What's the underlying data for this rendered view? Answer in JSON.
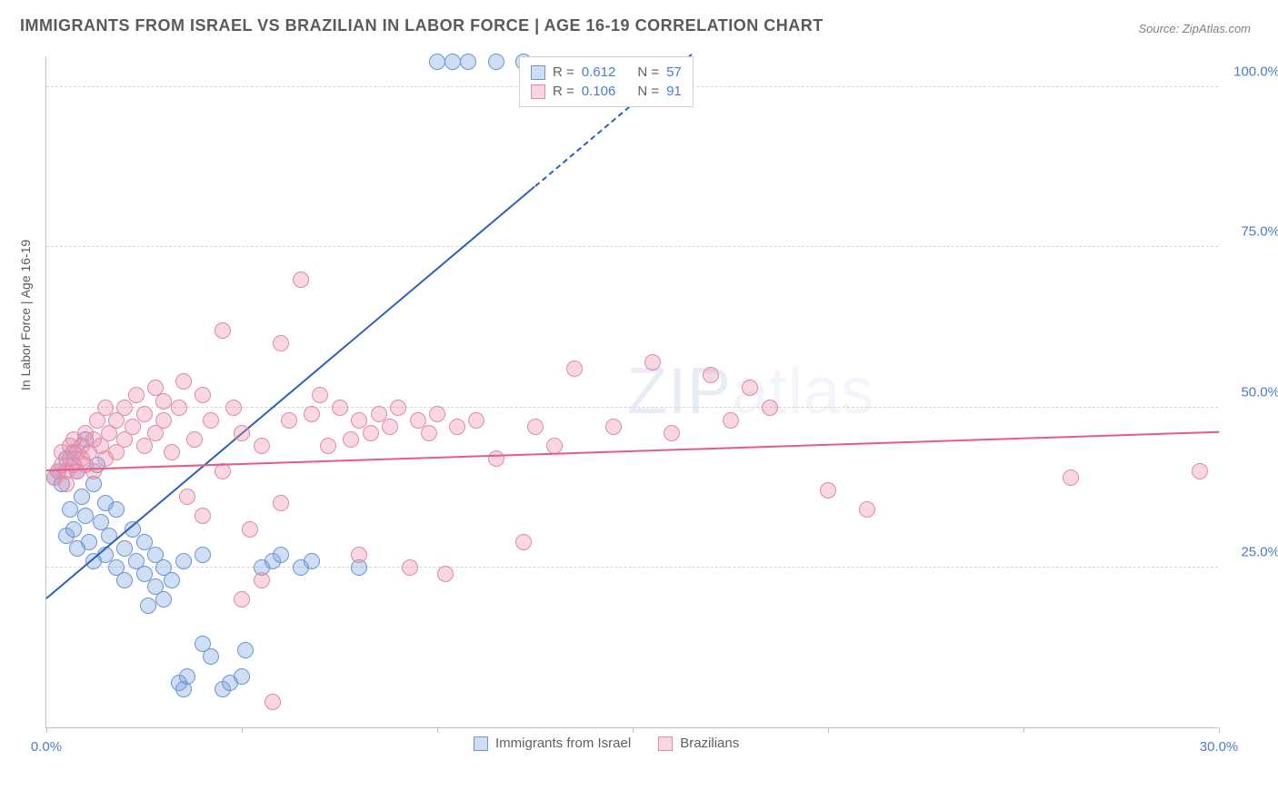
{
  "title": "IMMIGRANTS FROM ISRAEL VS BRAZILIAN IN LABOR FORCE | AGE 16-19 CORRELATION CHART",
  "source": "Source: ZipAtlas.com",
  "y_axis_label": "In Labor Force | Age 16-19",
  "watermark": "ZIPatlas",
  "chart": {
    "type": "scatter-correlation",
    "xlim": [
      0,
      30
    ],
    "ylim": [
      0,
      105
    ],
    "x_ticks": [
      0,
      5,
      10,
      15,
      20,
      25,
      30
    ],
    "x_tick_labels": {
      "0": "0.0%",
      "30": "30.0%"
    },
    "y_ticks": [
      25,
      50,
      75,
      100
    ],
    "y_tick_labels": {
      "25": "25.0%",
      "50": "50.0%",
      "75": "75.0%",
      "100": "100.0%"
    },
    "background_color": "#ffffff",
    "grid_color": "#d5d5d5",
    "axis_color": "#c0c0c0",
    "tick_label_color": "#4a7bd0",
    "tick_label_fontsize": 15,
    "title_color": "#5a5a5a",
    "title_fontsize": 18,
    "marker_radius": 9,
    "marker_stroke_width": 1.5,
    "series": [
      {
        "name": "Immigrants from Israel",
        "fill_color": "rgba(120,160,220,0.35)",
        "stroke_color": "#6a95d6",
        "trend_color": "#2a5fc0",
        "trend_width": 2,
        "R": 0.612,
        "N": 57,
        "trend": {
          "x1": 0,
          "y1": 20,
          "x2": 16.5,
          "y2": 105,
          "dash_from_x": 12.5
        },
        "points": [
          [
            0.2,
            39
          ],
          [
            0.3,
            40
          ],
          [
            0.4,
            38
          ],
          [
            0.5,
            42
          ],
          [
            0.5,
            30
          ],
          [
            0.6,
            34
          ],
          [
            0.7,
            43
          ],
          [
            0.7,
            31
          ],
          [
            0.8,
            40
          ],
          [
            0.8,
            28
          ],
          [
            0.9,
            36
          ],
          [
            1.0,
            45
          ],
          [
            1.0,
            33
          ],
          [
            1.1,
            29
          ],
          [
            1.2,
            38
          ],
          [
            1.2,
            26
          ],
          [
            1.3,
            41
          ],
          [
            1.4,
            32
          ],
          [
            1.5,
            35
          ],
          [
            1.5,
            27
          ],
          [
            1.6,
            30
          ],
          [
            1.8,
            34
          ],
          [
            1.8,
            25
          ],
          [
            2.0,
            28
          ],
          [
            2.0,
            23
          ],
          [
            2.2,
            31
          ],
          [
            2.3,
            26
          ],
          [
            2.5,
            29
          ],
          [
            2.5,
            24
          ],
          [
            2.6,
            19
          ],
          [
            2.8,
            22
          ],
          [
            2.8,
            27
          ],
          [
            3.0,
            25
          ],
          [
            3.0,
            20
          ],
          [
            3.2,
            23
          ],
          [
            3.4,
            7
          ],
          [
            3.5,
            26
          ],
          [
            3.5,
            6
          ],
          [
            3.6,
            8
          ],
          [
            4.0,
            13
          ],
          [
            4.2,
            11
          ],
          [
            4.5,
            6
          ],
          [
            4.7,
            7
          ],
          [
            5.0,
            8
          ],
          [
            5.1,
            12
          ],
          [
            5.5,
            25
          ],
          [
            5.8,
            26
          ],
          [
            6.0,
            27
          ],
          [
            6.5,
            25
          ],
          [
            6.8,
            26
          ],
          [
            8.0,
            25
          ],
          [
            10.0,
            104
          ],
          [
            10.4,
            104
          ],
          [
            10.8,
            104
          ],
          [
            11.5,
            104
          ],
          [
            12.2,
            104
          ],
          [
            4.0,
            27
          ]
        ]
      },
      {
        "name": "Brazilians",
        "fill_color": "rgba(235,140,170,0.35)",
        "stroke_color": "#e08aaa",
        "trend_color": "#e65a8a",
        "trend_width": 2,
        "R": 0.106,
        "N": 91,
        "trend": {
          "x1": 0,
          "y1": 40,
          "x2": 30,
          "y2": 46
        },
        "points": [
          [
            0.2,
            39
          ],
          [
            0.3,
            40
          ],
          [
            0.4,
            41
          ],
          [
            0.4,
            43
          ],
          [
            0.5,
            40
          ],
          [
            0.5,
            38
          ],
          [
            0.6,
            42
          ],
          [
            0.6,
            44
          ],
          [
            0.7,
            41
          ],
          [
            0.7,
            45
          ],
          [
            0.8,
            43
          ],
          [
            0.8,
            40
          ],
          [
            0.9,
            44
          ],
          [
            0.9,
            42
          ],
          [
            1.0,
            41
          ],
          [
            1.0,
            46
          ],
          [
            1.1,
            43
          ],
          [
            1.2,
            45
          ],
          [
            1.2,
            40
          ],
          [
            1.3,
            48
          ],
          [
            1.4,
            44
          ],
          [
            1.5,
            42
          ],
          [
            1.5,
            50
          ],
          [
            1.6,
            46
          ],
          [
            1.8,
            43
          ],
          [
            1.8,
            48
          ],
          [
            2.0,
            45
          ],
          [
            2.0,
            50
          ],
          [
            2.2,
            47
          ],
          [
            2.3,
            52
          ],
          [
            2.5,
            44
          ],
          [
            2.5,
            49
          ],
          [
            2.8,
            46
          ],
          [
            2.8,
            53
          ],
          [
            3.0,
            48
          ],
          [
            3.0,
            51
          ],
          [
            3.2,
            43
          ],
          [
            3.4,
            50
          ],
          [
            3.5,
            54
          ],
          [
            3.6,
            36
          ],
          [
            3.8,
            45
          ],
          [
            4.0,
            52
          ],
          [
            4.0,
            33
          ],
          [
            4.2,
            48
          ],
          [
            4.5,
            40
          ],
          [
            4.5,
            62
          ],
          [
            4.8,
            50
          ],
          [
            5.0,
            46
          ],
          [
            5.0,
            20
          ],
          [
            5.2,
            31
          ],
          [
            5.5,
            44
          ],
          [
            5.5,
            23
          ],
          [
            5.8,
            4
          ],
          [
            6.0,
            60
          ],
          [
            6.0,
            35
          ],
          [
            6.2,
            48
          ],
          [
            6.5,
            70
          ],
          [
            6.8,
            49
          ],
          [
            7.0,
            52
          ],
          [
            7.2,
            44
          ],
          [
            7.5,
            50
          ],
          [
            7.8,
            45
          ],
          [
            8.0,
            48
          ],
          [
            8.0,
            27
          ],
          [
            8.3,
            46
          ],
          [
            8.5,
            49
          ],
          [
            8.8,
            47
          ],
          [
            9.0,
            50
          ],
          [
            9.3,
            25
          ],
          [
            9.5,
            48
          ],
          [
            9.8,
            46
          ],
          [
            10.0,
            49
          ],
          [
            10.2,
            24
          ],
          [
            10.5,
            47
          ],
          [
            11.0,
            48
          ],
          [
            11.5,
            42
          ],
          [
            12.2,
            29
          ],
          [
            12.5,
            47
          ],
          [
            13.0,
            44
          ],
          [
            13.5,
            56
          ],
          [
            14.5,
            47
          ],
          [
            15.5,
            57
          ],
          [
            16.0,
            46
          ],
          [
            17.0,
            55
          ],
          [
            17.5,
            48
          ],
          [
            18.0,
            53
          ],
          [
            18.5,
            50
          ],
          [
            20.0,
            37
          ],
          [
            21.0,
            34
          ],
          [
            26.2,
            39
          ],
          [
            29.5,
            40
          ]
        ]
      }
    ],
    "legend_top": {
      "rows": [
        {
          "sq_fill": "rgba(120,160,220,0.35)",
          "sq_stroke": "#6a95d6",
          "r_label": "R =",
          "r": "0.612",
          "n_label": "N =",
          "n": "57"
        },
        {
          "sq_fill": "rgba(235,140,170,0.35)",
          "sq_stroke": "#e08aaa",
          "r_label": "R =",
          "r": "0.106",
          "n_label": "N =",
          "n": "91"
        }
      ]
    },
    "legend_bottom": [
      {
        "sq_fill": "rgba(120,160,220,0.35)",
        "sq_stroke": "#6a95d6",
        "label": "Immigrants from Israel"
      },
      {
        "sq_fill": "rgba(235,140,170,0.35)",
        "sq_stroke": "#e08aaa",
        "label": "Brazilians"
      }
    ]
  }
}
